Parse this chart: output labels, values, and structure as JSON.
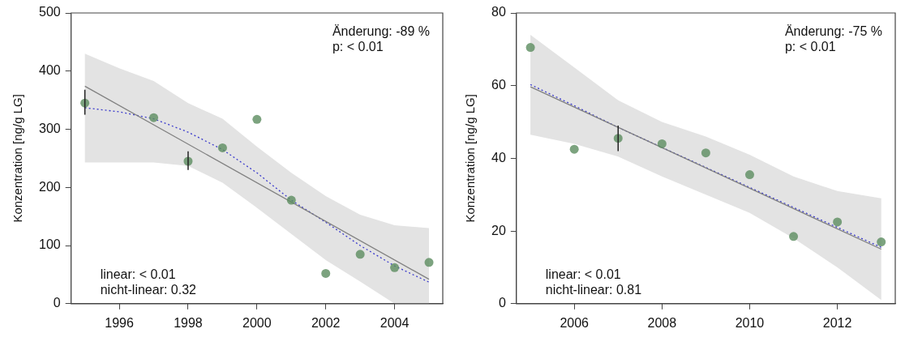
{
  "chart_data": [
    {
      "type": "scatter",
      "ylabel": "Konzentration [ng/g LG]",
      "xlim": [
        1994.6,
        2005.4
      ],
      "xticks": [
        1996,
        1998,
        2000,
        2002,
        2004
      ],
      "ylim": [
        0,
        500
      ],
      "yticks": [
        0,
        100,
        200,
        300,
        400,
        500
      ],
      "grid": false,
      "legend": false,
      "annotations": [
        "Änderung: -89 %",
        "p: < 0.01",
        "linear: < 0.01",
        "nicht-linear: 0.32"
      ],
      "series": [
        {
          "marker": "circle",
          "color": "#5b8c5f",
          "x": [
            1995,
            1997,
            1998,
            1999,
            2000,
            2001,
            2002,
            2003,
            2004,
            2005
          ],
          "values": [
            345,
            320,
            245,
            268,
            317,
            178,
            52,
            85,
            62,
            71
          ],
          "errors": [
            [
              325,
              368
            ],
            null,
            [
              230,
              262
            ],
            null,
            null,
            null,
            null,
            null,
            null,
            null
          ]
        },
        {
          "type": "line",
          "marker": "none",
          "color": "#808080",
          "line_style": "solid",
          "x": [
            1995,
            2005
          ],
          "values": [
            374,
            42
          ]
        },
        {
          "type": "line",
          "marker": "none",
          "color": "#3a3acc",
          "line_style": "dotted",
          "x": [
            1995,
            1996,
            1997,
            1998,
            1999,
            2000,
            2001,
            2002,
            2003,
            2004,
            2005
          ],
          "values": [
            337,
            330,
            318,
            295,
            265,
            225,
            178,
            140,
            100,
            65,
            37
          ],
          "lower": [
            243,
            243,
            243,
            237,
            208,
            165,
            120,
            75,
            38,
            0,
            0
          ],
          "upper": [
            430,
            405,
            383,
            345,
            318,
            270,
            225,
            185,
            153,
            135,
            130
          ]
        }
      ]
    },
    {
      "type": "scatter",
      "ylabel": "Konzentration [ng/g LG]",
      "xlim": [
        2004.68,
        2013.32
      ],
      "xticks": [
        2006,
        2008,
        2010,
        2012
      ],
      "ylim": [
        0,
        80
      ],
      "yticks": [
        0,
        20,
        40,
        60,
        80
      ],
      "grid": false,
      "legend": false,
      "annotations": [
        "Änderung: -75 %",
        "p: < 0.01",
        "linear: < 0.01",
        "nicht-linear: 0.81"
      ],
      "series": [
        {
          "marker": "circle",
          "color": "#5b8c5f",
          "x": [
            2005,
            2006,
            2007,
            2008,
            2009,
            2010,
            2011,
            2012,
            2013
          ],
          "values": [
            70.5,
            42.5,
            45.5,
            44,
            41.5,
            35.5,
            18.5,
            22.5,
            17
          ],
          "errors": [
            null,
            null,
            [
              42,
              49
            ],
            null,
            null,
            null,
            null,
            null,
            null
          ]
        },
        {
          "type": "line",
          "marker": "none",
          "color": "#808080",
          "line_style": "solid",
          "x": [
            2005,
            2013
          ],
          "values": [
            59.7,
            15
          ]
        },
        {
          "type": "line",
          "marker": "none",
          "color": "#3a3acc",
          "line_style": "dotted",
          "x": [
            2005,
            2006,
            2007,
            2008,
            2009,
            2010,
            2011,
            2012,
            2013
          ],
          "values": [
            60.3,
            54.5,
            48.5,
            43,
            37.5,
            32,
            26.5,
            21,
            15.5
          ],
          "lower": [
            46.5,
            44,
            40.5,
            35,
            30,
            25,
            18,
            10,
            1
          ],
          "upper": [
            74,
            65,
            56,
            50,
            46,
            41,
            35,
            31,
            29
          ]
        }
      ]
    }
  ]
}
